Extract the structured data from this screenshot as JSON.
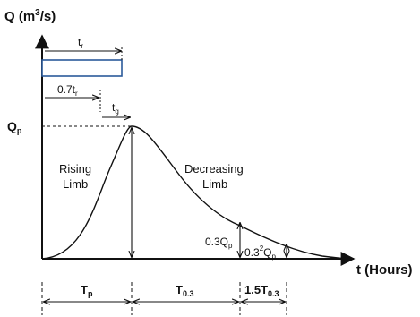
{
  "axes": {
    "y_label": "Q (m³/s)",
    "x_label": "t (Hours)"
  },
  "labels": {
    "tr": "t",
    "tr_sub": "r",
    "tr07": "0.7t",
    "tr07_sub": "r",
    "tg": "t",
    "tg_sub": "g",
    "qp": "Q",
    "qp_sub": "p",
    "rising_1": "Rising",
    "rising_2": "Limb",
    "decreasing_1": "Decreasing",
    "decreasing_2": "Limb",
    "q03": "0.3Q",
    "q03_sub": "p",
    "q032": "0.3",
    "q032_sup": "2",
    "q032_q": "Q",
    "q032_sub": "p"
  },
  "bottom": {
    "tp": "T",
    "tp_sub": "p",
    "t03": "T",
    "t03_sub": "0.3",
    "t15": "1.5T",
    "t15_sub": "0.3"
  }
}
